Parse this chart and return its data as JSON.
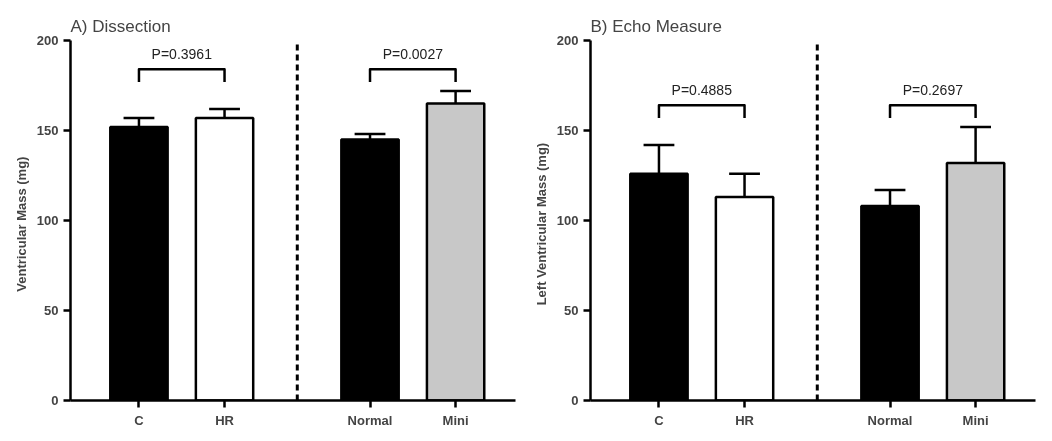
{
  "chart_data": [
    {
      "type": "bar",
      "title": "A) Dissection",
      "ylabel": "Ventricular  Mass  (mg)",
      "categories": [
        "C",
        "HR",
        "Normal",
        "Mini"
      ],
      "values": [
        152,
        157,
        145,
        165
      ],
      "colors": [
        "#000000",
        "#ffffff",
        "#000000",
        "#c8c8c8"
      ],
      "errors": [
        [
          152,
          157
        ],
        [
          157,
          162
        ],
        [
          145,
          148
        ],
        [
          165,
          172
        ]
      ],
      "ylim": [
        0,
        200
      ],
      "yticks": [
        0,
        50,
        100,
        150,
        200
      ],
      "grid": false,
      "annotations": [
        "P=0.3961",
        "P=0.0027"
      ]
    },
    {
      "type": "bar",
      "title": "B) Echo Measure",
      "ylabel": "Left Ventricular  Mass  (mg)",
      "categories": [
        "C",
        "HR",
        "Normal",
        "Mini"
      ],
      "values": [
        126,
        113,
        108,
        132
      ],
      "colors": [
        "#000000",
        "#ffffff",
        "#000000",
        "#c8c8c8"
      ],
      "errors": [
        [
          126,
          142
        ],
        [
          113,
          126
        ],
        [
          108,
          117
        ],
        [
          132,
          152
        ]
      ],
      "ylim": [
        0,
        200
      ],
      "yticks": [
        0,
        50,
        100,
        150,
        200
      ],
      "grid": false,
      "annotations": [
        "P=0.4885",
        "P=0.2697"
      ]
    }
  ]
}
